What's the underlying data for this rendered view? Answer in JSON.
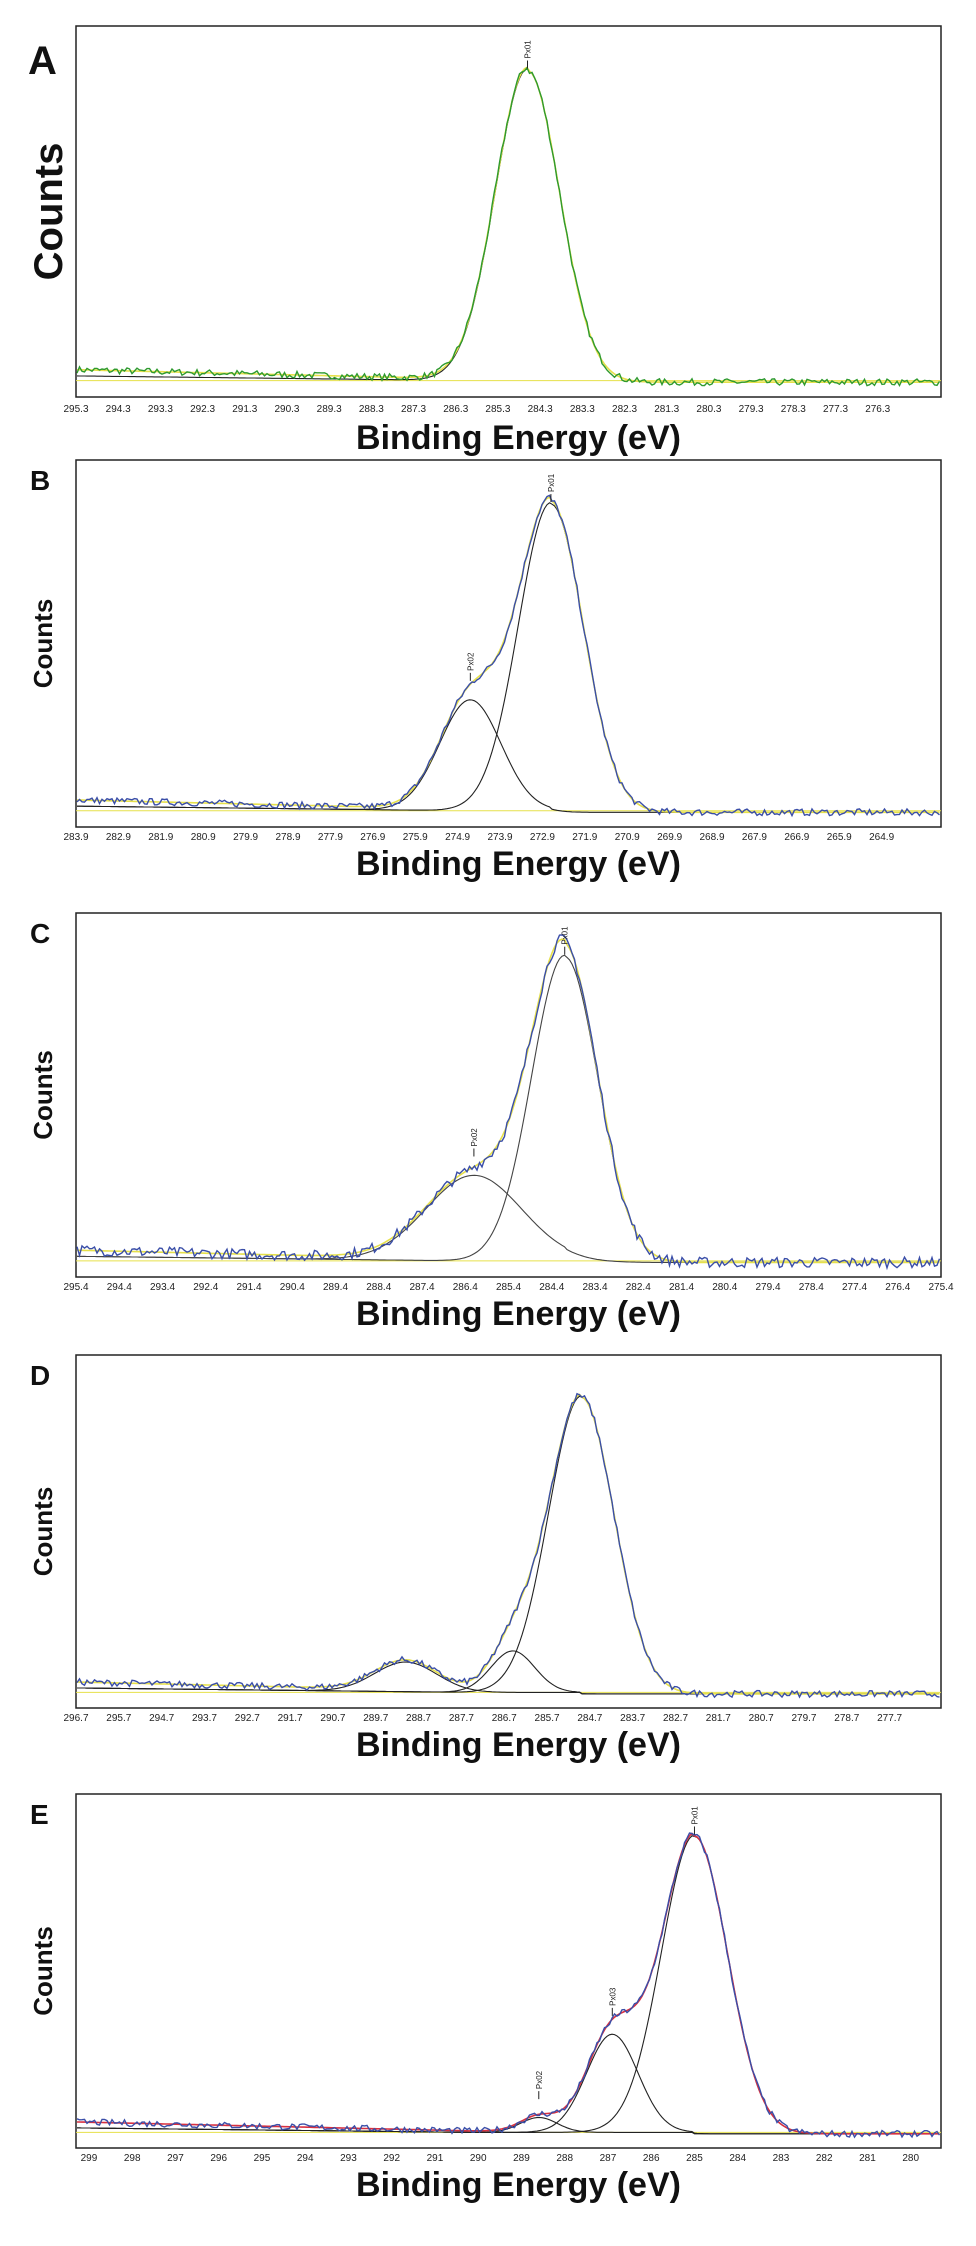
{
  "chart_data": [
    {
      "type": "line",
      "panel": "A",
      "xlabel": "Binding Energy (eV)",
      "ylabel": "Counts",
      "x_ticks": [
        "295.3",
        "294.3",
        "293.3",
        "292.3",
        "291.3",
        "290.3",
        "289.3",
        "288.3",
        "287.3",
        "286.3",
        "285.3",
        "284.3",
        "283.3",
        "282.3",
        "281.3",
        "280.3",
        "279.3",
        "278.3",
        "277.3",
        "276.3"
      ],
      "xlim": [
        295.3,
        274.8
      ],
      "x_reversed": true,
      "data_color": "#2e9a2e",
      "envelope_color": "#e6e04a",
      "component_color": "#222222",
      "peaks": [
        {
          "label": "Px01",
          "center_eV": 284.6,
          "relative_height": 1.0,
          "fwhm_eV": 1.8
        }
      ]
    },
    {
      "type": "line",
      "panel": "B",
      "xlabel": "Binding Energy (eV)",
      "ylabel": "Counts",
      "x_ticks": [
        "283.9",
        "282.9",
        "281.9",
        "280.9",
        "279.9",
        "278.9",
        "277.9",
        "276.9",
        "275.9",
        "274.9",
        "273.9",
        "272.9",
        "271.9",
        "270.9",
        "269.9",
        "268.9",
        "267.9",
        "266.9",
        "265.9",
        "264.9"
      ],
      "xlim": [
        283.9,
        263.5
      ],
      "x_reversed": true,
      "data_color": "#3a4ea8",
      "envelope_color": "#e6e04a",
      "component_color": "#222222",
      "peaks": [
        {
          "label": "Px01",
          "center_eV": 272.7,
          "relative_height": 1.0,
          "fwhm_eV": 1.8
        },
        {
          "label": "Px02",
          "center_eV": 274.6,
          "relative_height": 0.36,
          "fwhm_eV": 1.7
        }
      ]
    },
    {
      "type": "line",
      "panel": "C",
      "xlabel": "Binding Energy (eV)",
      "ylabel": "Counts",
      "x_ticks": [
        "295.4",
        "294.4",
        "293.4",
        "292.4",
        "291.4",
        "290.4",
        "289.4",
        "288.4",
        "287.4",
        "286.4",
        "285.4",
        "284.4",
        "283.4",
        "282.4",
        "281.4",
        "280.4",
        "279.4",
        "278.4",
        "277.4",
        "276.4",
        "275.4"
      ],
      "xlim": [
        295.4,
        275.4
      ],
      "x_reversed": true,
      "data_color": "#3a4ea8",
      "envelope_color": "#e6e04a",
      "component_color": "#444444",
      "peaks": [
        {
          "label": "Px01",
          "center_eV": 284.1,
          "relative_height": 1.0,
          "fwhm_eV": 1.8
        },
        {
          "label": "Px02",
          "center_eV": 286.2,
          "relative_height": 0.28,
          "fwhm_eV": 2.6
        }
      ]
    },
    {
      "type": "line",
      "panel": "D",
      "xlabel": "Binding Energy (eV)",
      "ylabel": "Counts",
      "x_ticks": [
        "296.7",
        "295.7",
        "294.7",
        "293.7",
        "292.7",
        "291.7",
        "290.7",
        "289.7",
        "288.7",
        "287.7",
        "286.7",
        "285.7",
        "284.7",
        "283.7",
        "282.7",
        "281.7",
        "280.7",
        "279.7",
        "278.7",
        "277.7"
      ],
      "xlim": [
        296.7,
        276.5
      ],
      "x_reversed": true,
      "data_color": "#3a4ea8",
      "envelope_color": "#e6e04a",
      "component_color": "#222222",
      "peaks": [
        {
          "label": "",
          "center_eV": 284.9,
          "relative_height": 1.0,
          "fwhm_eV": 1.8
        },
        {
          "label": "",
          "center_eV": 286.5,
          "relative_height": 0.14,
          "fwhm_eV": 1.2
        },
        {
          "label": "",
          "center_eV": 289.0,
          "relative_height": 0.1,
          "fwhm_eV": 1.7
        }
      ]
    },
    {
      "type": "line",
      "panel": "E",
      "xlabel": "Binding Energy (eV)",
      "ylabel": "Counts",
      "x_ticks": [
        "299",
        "298",
        "297",
        "296",
        "295",
        "294",
        "293",
        "292",
        "291",
        "290",
        "289",
        "288",
        "287",
        "286",
        "285",
        "284",
        "283",
        "282",
        "281",
        "280"
      ],
      "xlim": [
        299.3,
        279.3
      ],
      "x_reversed": true,
      "data_color": "#3a4ea8",
      "envelope_color": "#d83040",
      "component_color": "#222222",
      "peaks": [
        {
          "label": "Px01",
          "center_eV": 285.0,
          "relative_height": 1.0,
          "fwhm_eV": 1.8
        },
        {
          "label": "Px03",
          "center_eV": 286.9,
          "relative_height": 0.33,
          "fwhm_eV": 1.4
        },
        {
          "label": "Px02",
          "center_eV": 288.6,
          "relative_height": 0.05,
          "fwhm_eV": 1.0
        }
      ]
    }
  ]
}
